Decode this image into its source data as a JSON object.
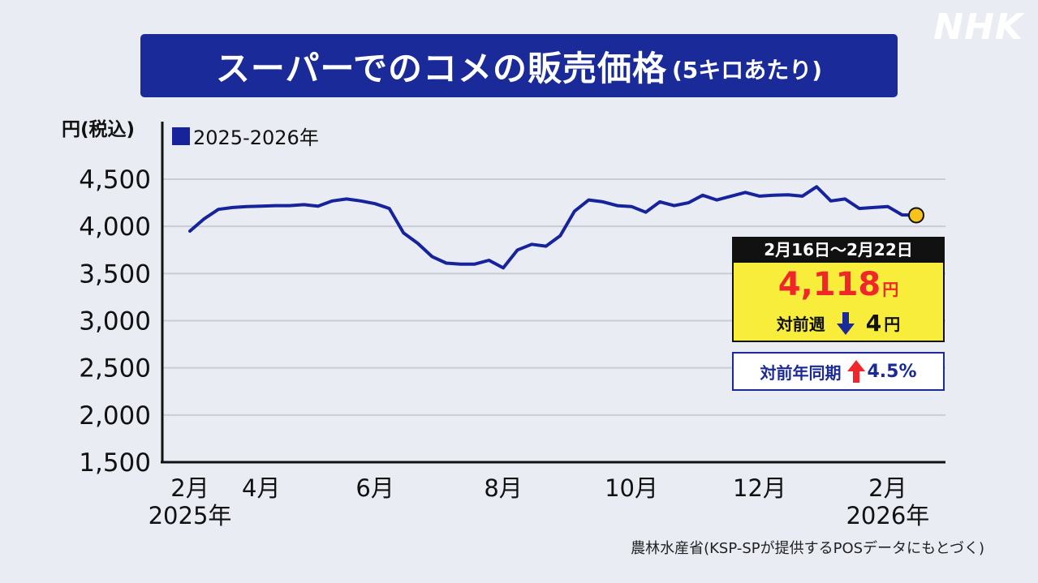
{
  "logo": "NHK",
  "title": {
    "main": "スーパーでのコメの販売価格",
    "sub": "(5キロあたり)"
  },
  "y_unit": "円(税込)",
  "legend": {
    "label": "2025-2026年",
    "color": "#16239a"
  },
  "chart_data": {
    "type": "line",
    "title": "スーパーでのコメの販売価格 (5キロあたり)",
    "ylabel": "円(税込)",
    "ylim": [
      1500,
      4500
    ],
    "yticks": [
      "4,500",
      "4,000",
      "3,500",
      "3,000",
      "2,500",
      "2,000",
      "1,500"
    ],
    "ytick_values": [
      4500,
      4000,
      3500,
      3000,
      2500,
      2000,
      1500
    ],
    "grid": true,
    "legend_position": "top-left",
    "x_ticks": [
      {
        "label": "2月",
        "label2": "2025年",
        "week": 0
      },
      {
        "label": "4月",
        "label2": "",
        "week": 5
      },
      {
        "label": "6月",
        "label2": "",
        "week": 13
      },
      {
        "label": "8月",
        "label2": "",
        "week": 22
      },
      {
        "label": "10月",
        "label2": "",
        "week": 31
      },
      {
        "label": "12月",
        "label2": "",
        "week": 40
      },
      {
        "label": "2月",
        "label2": "2026年",
        "week": 49
      }
    ],
    "series": [
      {
        "name": "2025-2026年",
        "color": "#16239a",
        "values": [
          3950,
          4080,
          4180,
          4200,
          4210,
          4215,
          4220,
          4220,
          4230,
          4215,
          4270,
          4290,
          4270,
          4240,
          4190,
          3930,
          3820,
          3680,
          3610,
          3600,
          3600,
          3640,
          3560,
          3750,
          3810,
          3790,
          3900,
          4160,
          4280,
          4260,
          4220,
          4210,
          4150,
          4260,
          4220,
          4250,
          4330,
          4280,
          4320,
          4360,
          4320,
          4330,
          4335,
          4320,
          4420,
          4270,
          4290,
          4190,
          4200,
          4210,
          4122,
          4118
        ]
      }
    ],
    "highlight": {
      "color": "#f7c21a"
    }
  },
  "callout": {
    "date": "2月16日～2月22日",
    "price": "4,118",
    "price_unit": "円",
    "wow_label": "対前週",
    "wow_direction": "down",
    "wow_value": "4",
    "wow_unit": "円",
    "yoy_label": "対前年同期",
    "yoy_direction": "up",
    "yoy_value": "4.5%"
  },
  "source": "農林水産省(KSP-SPが提供するPOSデータにもとづく)"
}
